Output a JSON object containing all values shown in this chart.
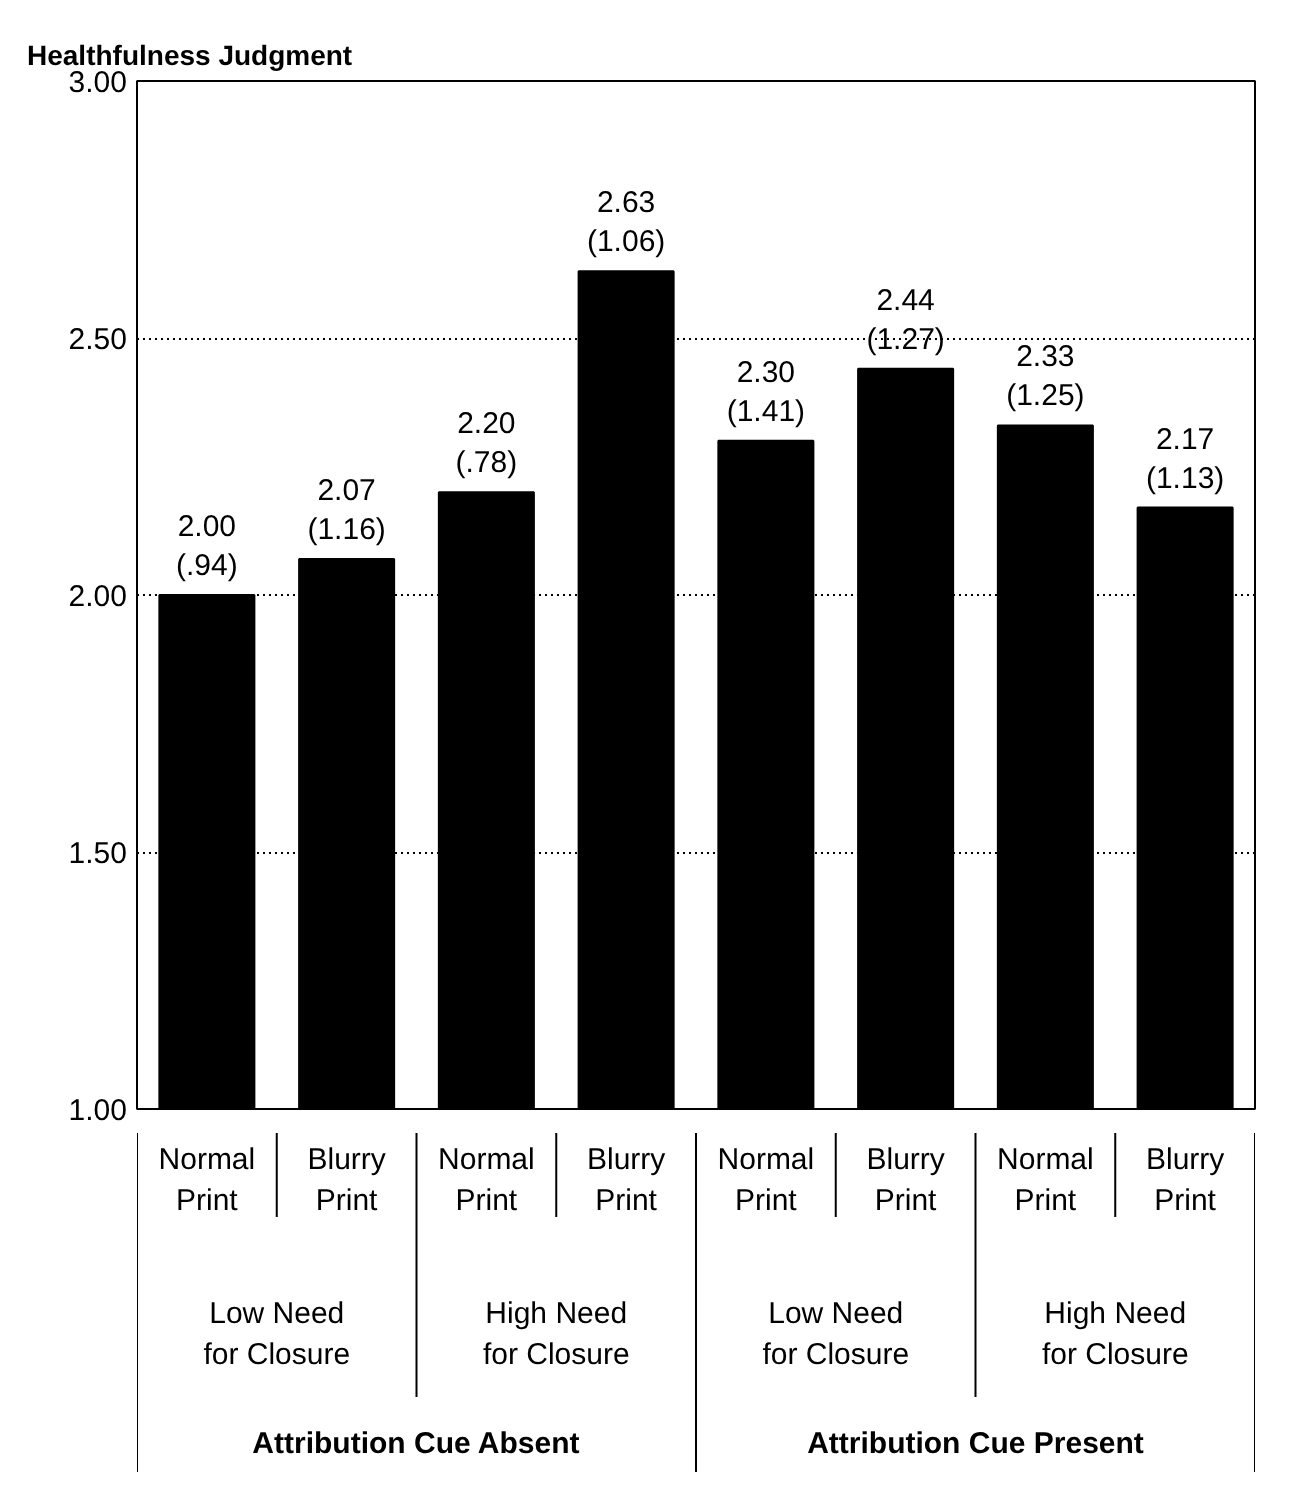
{
  "chart_data": {
    "type": "bar",
    "ylabel": "Healthfulness Judgment",
    "categories": [
      "Normal Print",
      "Blurry Print",
      "Normal Print",
      "Blurry Print",
      "Normal Print",
      "Blurry Print",
      "Normal Print",
      "Blurry Print"
    ],
    "values": [
      2.0,
      2.07,
      2.2,
      2.63,
      2.3,
      2.44,
      2.33,
      2.17
    ],
    "color": "#000000",
    "value_labels": [
      "2.00 (.94)",
      "2.07 (1.16)",
      "2.20 (.78)",
      "2.63 (1.06)",
      "2.30 (1.41)",
      "2.44 (1.27)",
      "2.33 (1.25)",
      "2.17 (1.13)"
    ],
    "annotations": [
      "Low Need for Closure",
      "High Need for Closure",
      "Low Need for Closure",
      "High Need for Closure",
      "Attribution Cue Absent",
      "Attribution Cue Present"
    ],
    "ylim": [
      1.0,
      3.0
    ],
    "yticks": [
      {
        "value": 1.0,
        "label": "1.00"
      },
      {
        "value": 1.5,
        "label": "1.50"
      },
      {
        "value": 2.0,
        "label": "2.00"
      },
      {
        "value": 2.5,
        "label": "2.50"
      },
      {
        "value": 3.0,
        "label": "3.00"
      }
    ],
    "grid": "y"
  }
}
